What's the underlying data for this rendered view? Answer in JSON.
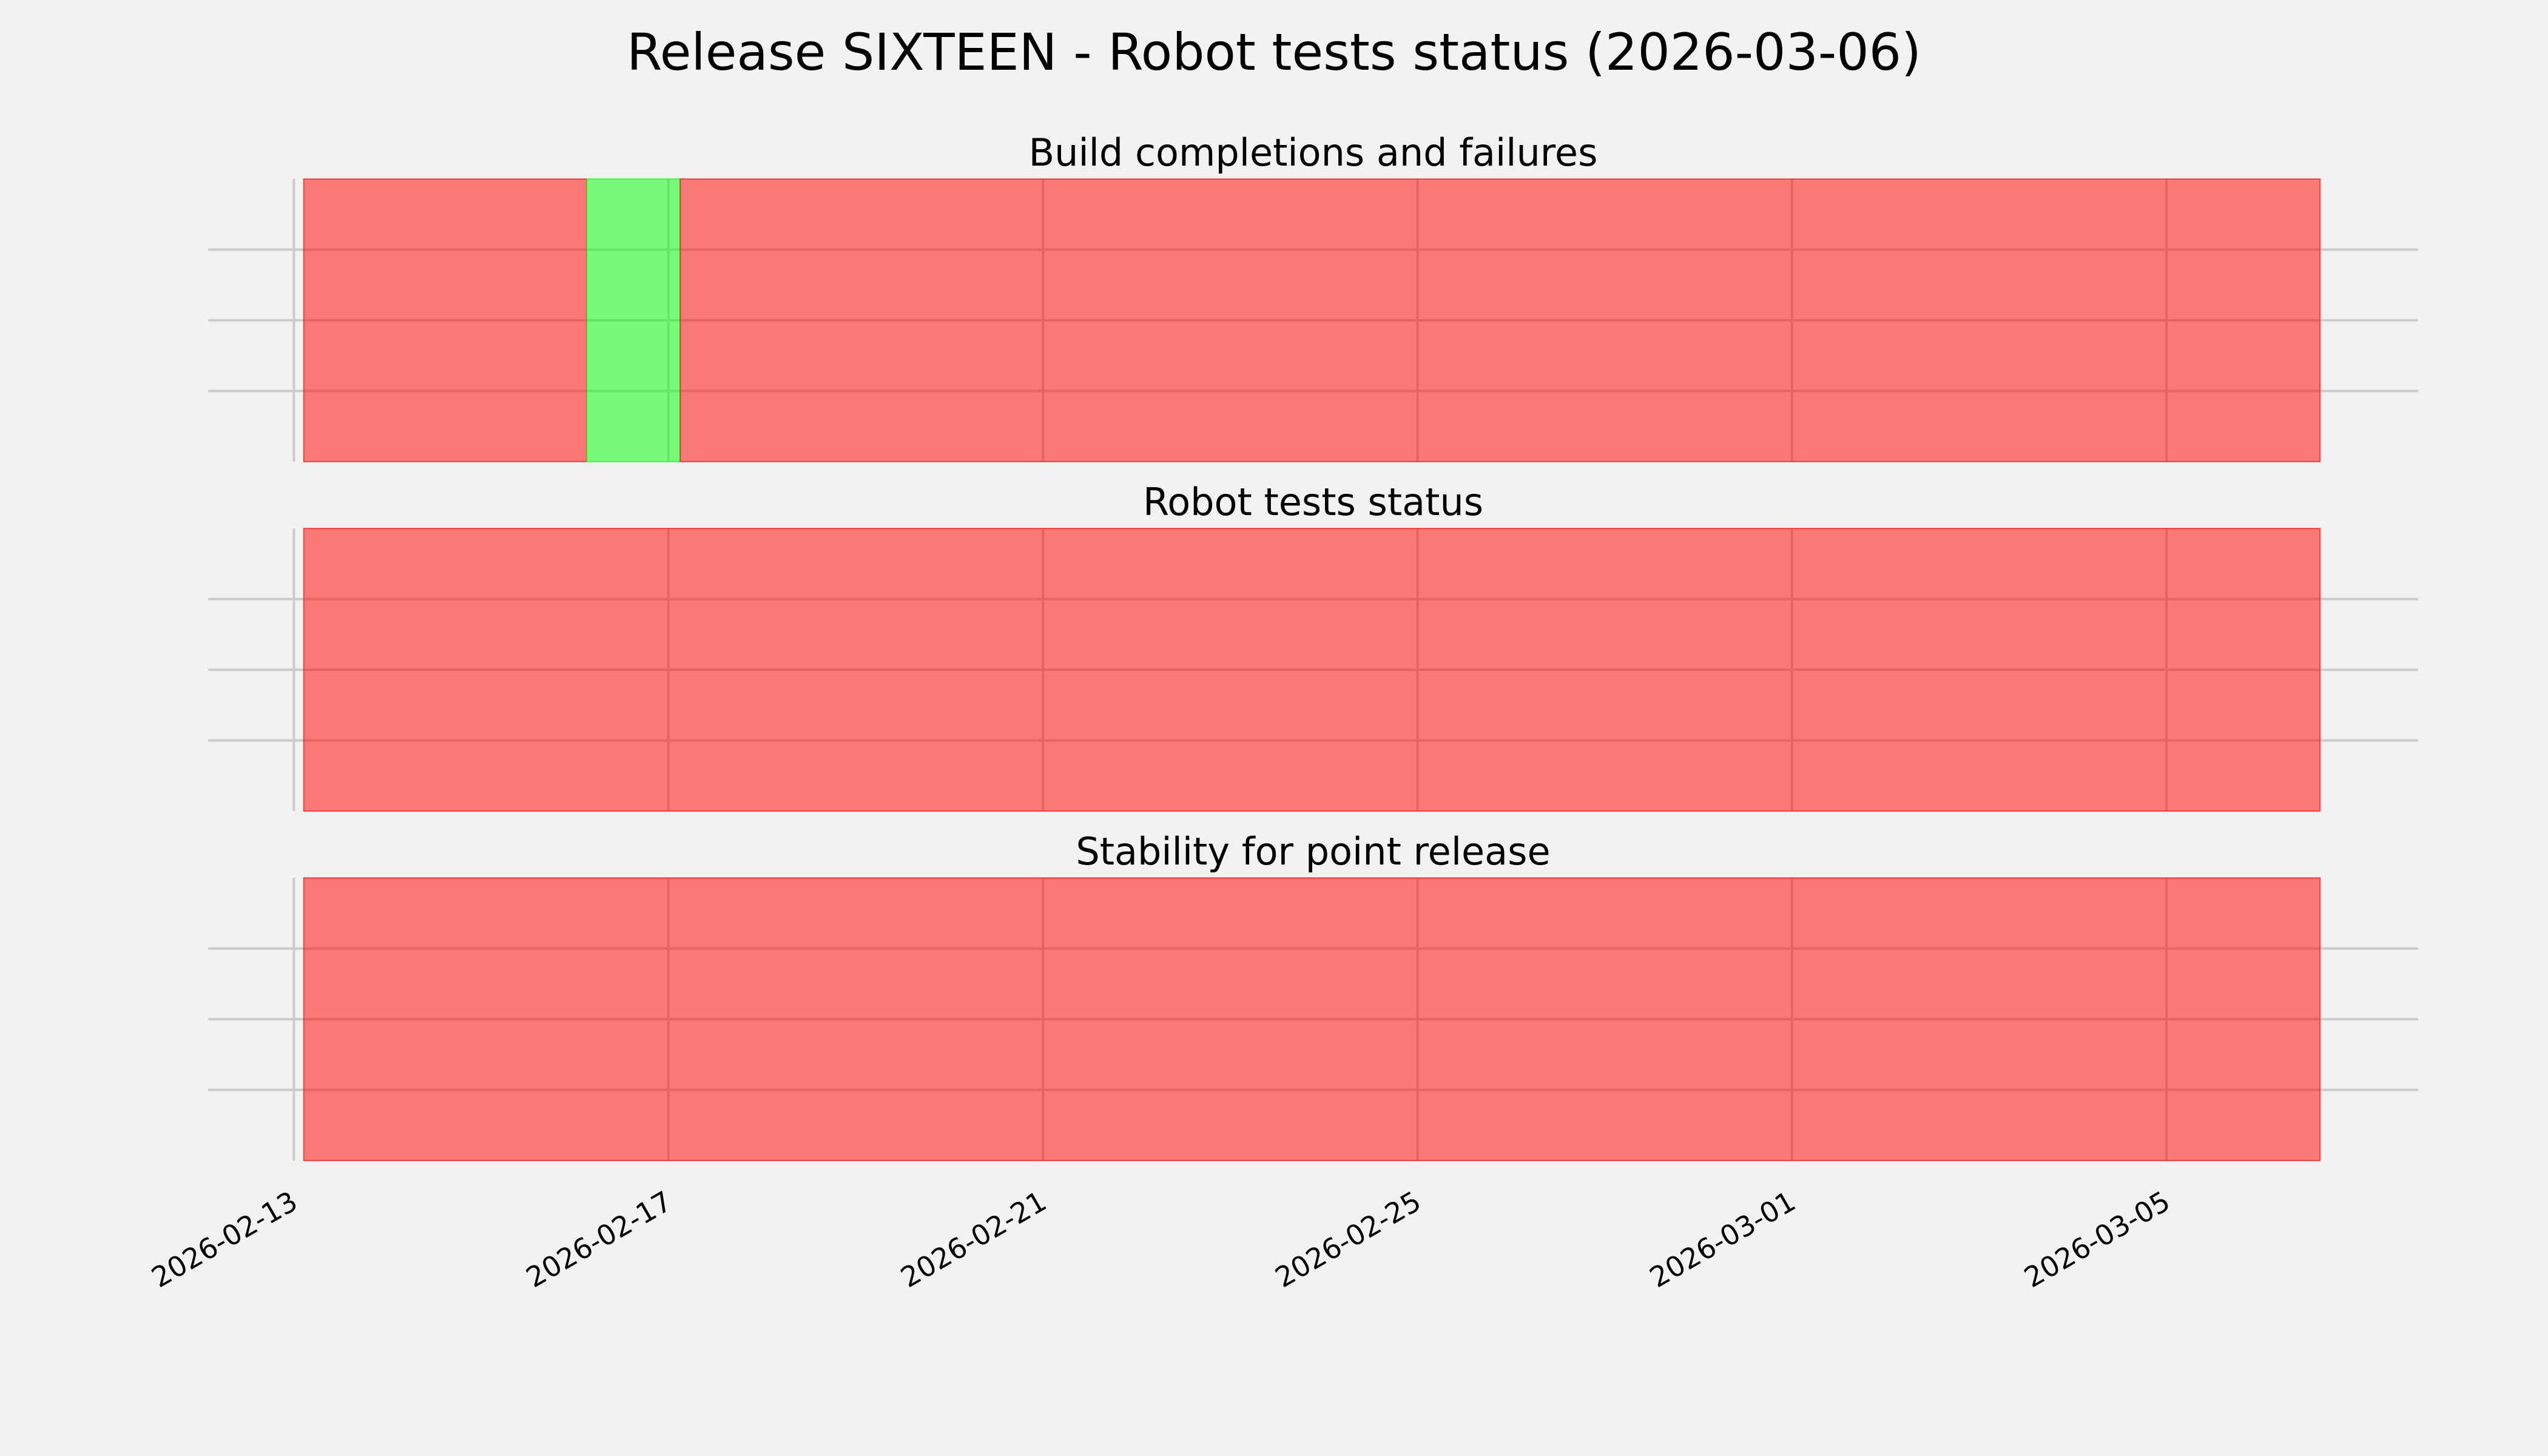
{
  "chart_data": [
    {
      "type": "timeline",
      "title": "Build completions and failures",
      "xlim": [
        "2026-02-12T02:00",
        "2026-03-07T16:30"
      ],
      "ylim": [
        0,
        1
      ],
      "yticks": [
        0.25,
        0.5,
        0.75
      ],
      "grid": true,
      "spans": [
        {
          "start": "2026-02-13T02:30",
          "end": "2026-02-16T03:00",
          "status": "fail",
          "color": "#ff0000"
        },
        {
          "start": "2026-02-16T03:00",
          "end": "2026-02-17T03:00",
          "status": "pass",
          "color": "#00ff00"
        },
        {
          "start": "2026-02-17T03:00",
          "end": "2026-03-06T15:20",
          "status": "fail",
          "color": "#ff0000"
        }
      ]
    },
    {
      "type": "timeline",
      "title": "Robot tests status",
      "xlim": [
        "2026-02-12T02:00",
        "2026-03-07T16:30"
      ],
      "ylim": [
        0,
        1
      ],
      "yticks": [
        0.25,
        0.5,
        0.75
      ],
      "grid": true,
      "spans": [
        {
          "start": "2026-02-13T02:30",
          "end": "2026-03-06T15:20",
          "status": "fail",
          "color": "#ff0000"
        }
      ]
    },
    {
      "type": "timeline",
      "title": "Stability for point release",
      "xlim": [
        "2026-02-12T02:00",
        "2026-03-07T16:30"
      ],
      "ylim": [
        0,
        1
      ],
      "yticks": [
        0.25,
        0.5,
        0.75
      ],
      "grid": true,
      "spans": [
        {
          "start": "2026-02-13T02:30",
          "end": "2026-03-06T15:20",
          "status": "fail",
          "color": "#ff0000"
        }
      ]
    }
  ],
  "figure": {
    "title": "Release SIXTEEN - Robot tests status (2026-03-06)",
    "background": "#f2f2f2",
    "span_alpha": 0.5,
    "xticks": [
      "2026-02-13",
      "2026-02-17",
      "2026-02-21",
      "2026-02-25",
      "2026-03-01",
      "2026-03-05"
    ]
  }
}
